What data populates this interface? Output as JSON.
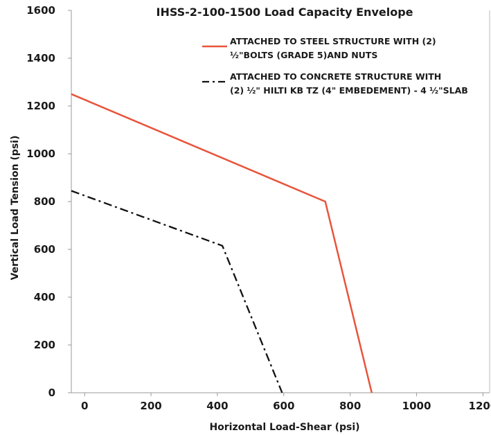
{
  "chart_data": {
    "type": "line",
    "title": "IHSS-2-100-1500 Load Capacity Envelope",
    "xlabel": "Horizontal Load-Shear (psi)",
    "ylabel": "Vertical Load Tension (psi)",
    "xlim": [
      -40,
      1220
    ],
    "ylim": [
      0,
      1600
    ],
    "x_ticks": [
      0,
      200,
      400,
      600,
      800,
      1000,
      1200
    ],
    "y_ticks": [
      0,
      200,
      400,
      600,
      800,
      1000,
      1200,
      1400,
      1600
    ],
    "grid": false,
    "legend_position": "top-right",
    "series": [
      {
        "name_lines": [
          "ATTACHED TO STEEL STRUCTURE WITH (2)",
          "½\"BOLTS (GRADE 5)AND NUTS"
        ],
        "color": "#e8543a",
        "style": "solid",
        "points": [
          [
            -40,
            1250
          ],
          [
            725,
            800
          ],
          [
            865,
            0
          ]
        ]
      },
      {
        "name_lines": [
          "ATTACHED TO CONCRETE STRUCTURE WITH",
          "(2) ½\" HILTI KB TZ  (4\" EMBEDEMENT) - 4 ½\"SLAB"
        ],
        "color": "#111111",
        "style": "dashdot",
        "points": [
          [
            -40,
            845
          ],
          [
            415,
            615
          ],
          [
            595,
            0
          ]
        ]
      }
    ]
  }
}
